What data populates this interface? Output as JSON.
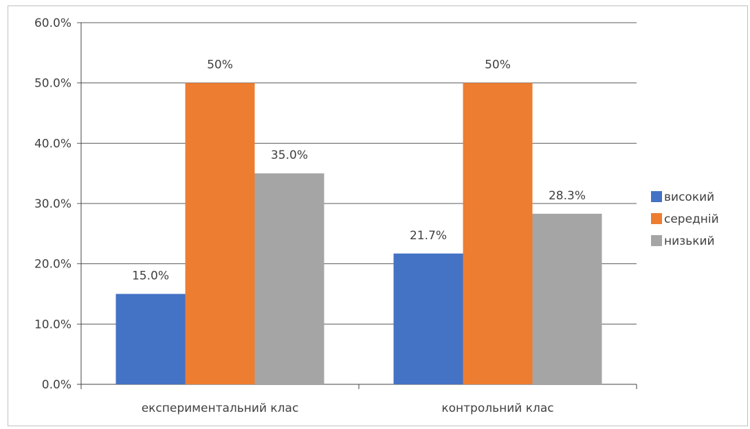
{
  "chart_data": {
    "type": "bar",
    "categories": [
      "експериментальний клас",
      "контрольний клас"
    ],
    "series": [
      {
        "name": "високий",
        "values": [
          15.0,
          21.7
        ],
        "labels": [
          "15.0%",
          "21.7%"
        ],
        "color": "#4472c4"
      },
      {
        "name": "середній",
        "values": [
          50.0,
          50.0
        ],
        "labels": [
          "50%",
          "50%"
        ],
        "color": "#ed7d31"
      },
      {
        "name": "низький",
        "values": [
          35.0,
          28.3
        ],
        "labels": [
          "35.0%",
          "28.3%"
        ],
        "color": "#a5a5a5"
      }
    ],
    "ylim": [
      0,
      60
    ],
    "yticks": [
      "0.0%",
      "10.0%",
      "20.0%",
      "30.0%",
      "40.0%",
      "50.0%",
      "60.0%"
    ],
    "grid": true,
    "legend_position": "right"
  }
}
